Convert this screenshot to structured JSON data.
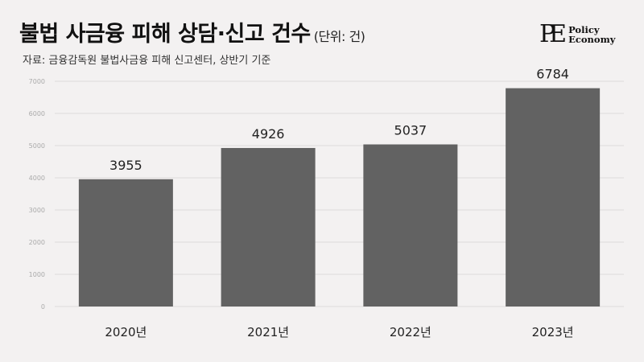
{
  "header": {
    "title": "불법 사금융 피해 상담·신고 건수",
    "unit": "(단위: 건)",
    "source": "자료: 금융감독원 불법사금융 피해 신고센터, 상반기 기준"
  },
  "logo": {
    "mark": "PE",
    "line1": "Policy",
    "line2": "Economy"
  },
  "colors": {
    "background": "#f3f1f1",
    "bar": "#626262",
    "grid": "#dcdcdc"
  },
  "chart_data": {
    "type": "bar",
    "title": "불법 사금융 피해 상담·신고 건수",
    "categories": [
      "2020년",
      "2021년",
      "2022년",
      "2023년"
    ],
    "values": [
      3955,
      4926,
      5037,
      6784
    ],
    "ylim": [
      0,
      7000
    ],
    "yticks": [
      0,
      1000,
      2000,
      3000,
      4000,
      5000,
      6000,
      7000
    ],
    "grid": true,
    "xlabel": "",
    "ylabel": ""
  }
}
